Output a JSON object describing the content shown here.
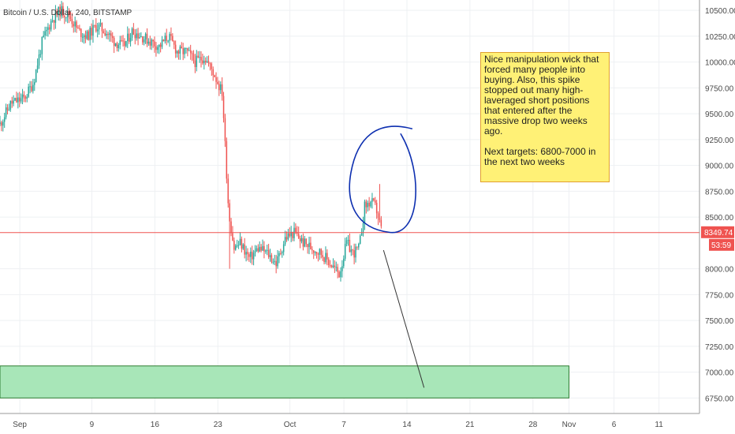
{
  "chart_data": {
    "type": "candlestick",
    "title": "Bitcoin / U.S. Dollar, 240, BITSTAMP",
    "y_range": [
      6600,
      10600
    ],
    "y_ticks": [
      "10500.00",
      "10250.00",
      "10000.00",
      "9750.00",
      "9500.00",
      "9250.00",
      "9000.00",
      "8750.00",
      "8500.00",
      "8000.00",
      "7750.00",
      "7500.00",
      "7250.00",
      "7000.00",
      "6750.00"
    ],
    "x_ticks": [
      {
        "label": "Sep",
        "day": 1
      },
      {
        "label": "9",
        "day": 9
      },
      {
        "label": "16",
        "day": 16
      },
      {
        "label": "23",
        "day": 23
      },
      {
        "label": "Oct",
        "day": 31
      },
      {
        "label": "7",
        "day": 37
      },
      {
        "label": "14",
        "day": 44
      },
      {
        "label": "21",
        "day": 51
      },
      {
        "label": "28",
        "day": 58
      },
      {
        "label": "Nov",
        "day": 62
      },
      {
        "label": "6",
        "day": 67
      },
      {
        "label": "11",
        "day": 72
      }
    ],
    "x_range_days": [
      -1.2,
      76.5
    ],
    "path_day": [
      -1.2,
      0,
      1.5,
      2.5,
      3.5,
      4.5,
      5.5,
      6.5,
      7.5,
      8.5,
      9.5,
      10.5,
      11.5,
      12.5,
      13.5,
      14.5,
      15.5,
      16.5,
      17.5,
      18.5,
      19.5,
      20.5,
      21.5,
      22.5,
      23.5,
      24.2,
      24.8,
      25.5,
      26.5,
      27.5,
      28.5,
      29.5,
      30.5,
      31.5,
      32.5,
      33.5,
      34.5,
      35.5,
      36.5,
      37.3,
      38,
      38.7,
      39.3,
      40,
      40.6,
      41.2
    ],
    "path_close": [
      9400,
      9600,
      9650,
      9800,
      10200,
      10400,
      10500,
      10450,
      10300,
      10250,
      10350,
      10300,
      10200,
      10150,
      10300,
      10250,
      10200,
      10150,
      10250,
      10100,
      10100,
      10000,
      10050,
      9900,
      9700,
      8550,
      8200,
      8250,
      8100,
      8200,
      8150,
      8050,
      8300,
      8350,
      8250,
      8200,
      8150,
      8050,
      7950,
      8250,
      8150,
      8200,
      8600,
      8650,
      8580,
      8360
    ],
    "last_price": "8349.74",
    "countdown": "53:59",
    "target_zone": {
      "low": 6750,
      "high": 7060,
      "from_day": -1.2,
      "to_day": 62
    },
    "colors": {
      "up": "#26a69a",
      "down": "#ef5350",
      "zone": "#a8e6b8",
      "zone_border": "#2e7d32",
      "price_line": "#ef5350",
      "drawing": "#0d2fb0"
    }
  },
  "annotation": {
    "paragraph1": "Nice manipulation wick that forced many people into buying. Also, this spike stopped out many high-laveraged short positions that entered after the massive drop two weeks ago.",
    "paragraph2": "Next targets: 6800-7000 in the next two weeks"
  }
}
